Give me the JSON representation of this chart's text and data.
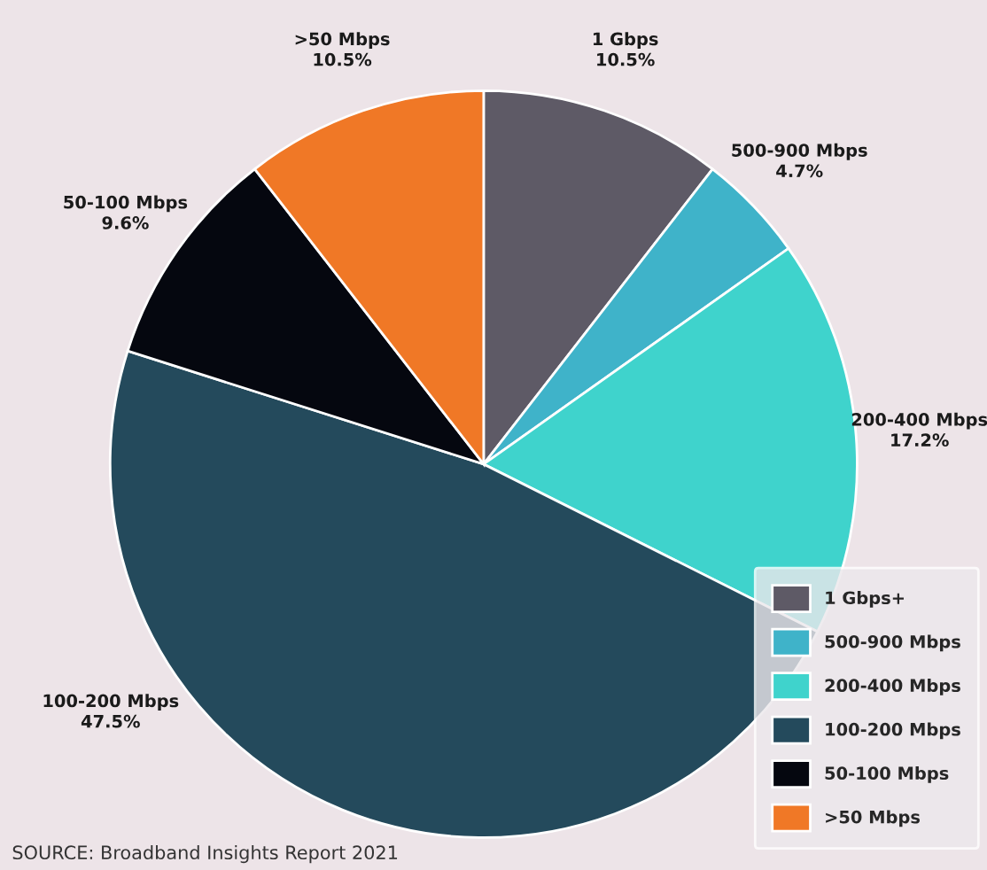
{
  "chart_data": {
    "type": "pie",
    "categories": [
      "1 Gbps+",
      "500-900 Mbps",
      "200-400 Mbps",
      "100-200 Mbps",
      "50-100 Mbps",
      ">50 Mbps"
    ],
    "values": [
      10.5,
      4.7,
      17.2,
      47.5,
      9.6,
      10.5
    ],
    "colors": [
      "#5e5a66",
      "#3fb3c9",
      "#3fd3cc",
      "#244a5c",
      "#05070f",
      "#f07826"
    ],
    "value_labels": [
      "1 Gbps\n10.5%",
      "500-900 Mbps\n4.7%",
      "200-400 Mbps\n17.2%",
      "100-200 Mbps\n47.5%",
      "50-100 Mbps\n9.6%",
      ">50 Mbps\n10.5%"
    ],
    "legend": "bottom right",
    "annotations": [
      "SOURCE: Broadband Insights Report 2021"
    ]
  }
}
